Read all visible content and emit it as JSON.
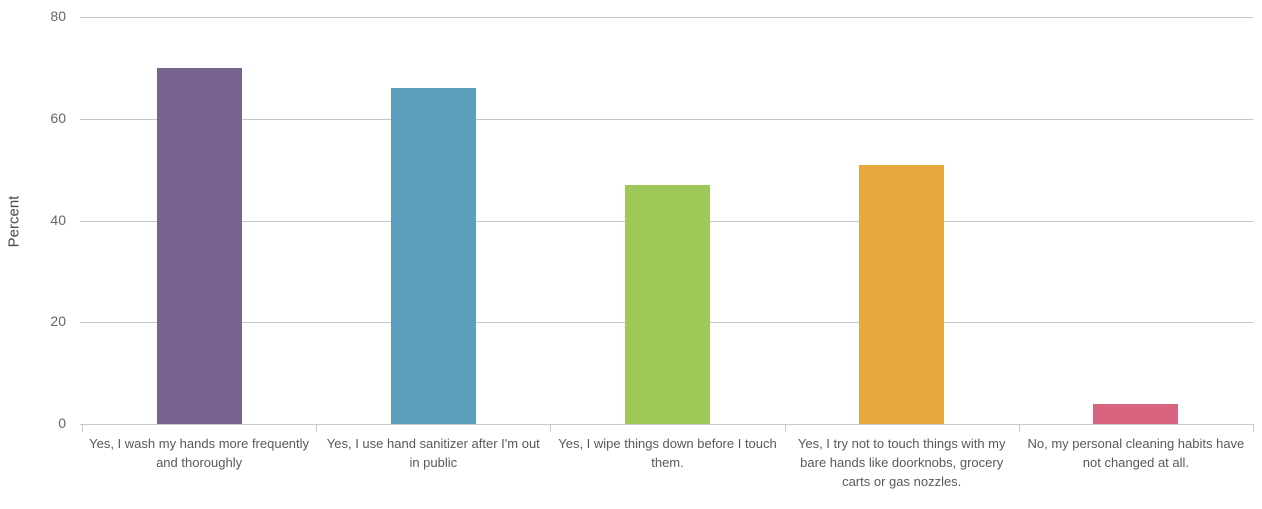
{
  "chart_data": {
    "type": "bar",
    "title": "",
    "xlabel": "",
    "ylabel": "Percent",
    "ylim": [
      0,
      80
    ],
    "yticks": [
      0,
      20,
      40,
      60,
      80
    ],
    "grid": true,
    "legend": false,
    "categories": [
      "Yes, I wash my hands more frequently and thoroughly",
      "Yes, I use hand sanitizer after I'm out in public",
      "Yes, I wipe things down before I touch them.",
      "Yes, I try not to touch things with my bare hands like doorknobs, grocery carts or gas nozzles.",
      "No, my personal cleaning habits have not changed at all."
    ],
    "values": [
      70,
      66,
      47,
      51,
      4
    ],
    "bar_colors": [
      "#796390",
      "#5b9fbc",
      "#a0c858",
      "#e8a83e",
      "#d9647f"
    ]
  },
  "colors": {
    "background": "#ffffff",
    "gridline": "#c6c6c4",
    "axis_line": "#c9c9c9",
    "tick_label": "#666666",
    "category_label": "#595959",
    "axis_title": "#4a4a4a"
  }
}
